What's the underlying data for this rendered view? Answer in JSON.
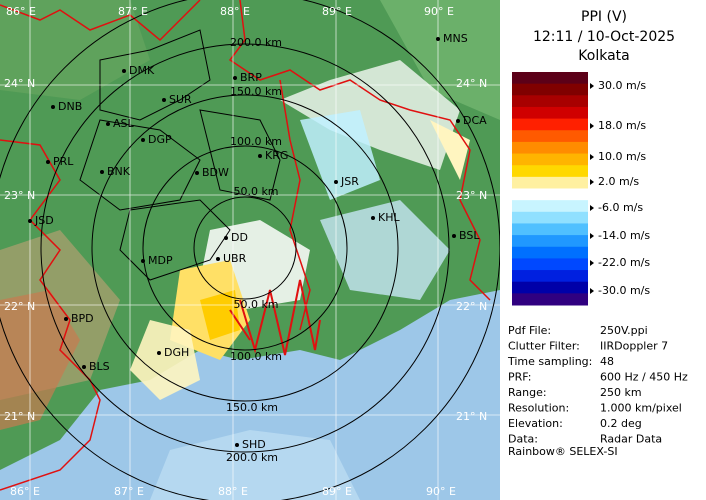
{
  "header": {
    "title": "PPI (V)",
    "time": "12:11 / 10-Oct-2025",
    "station": "Kolkata"
  },
  "colorbar": {
    "labels": [
      "30.0 m/s",
      "18.0 m/s",
      "10.0 m/s",
      "2.0 m/s",
      "-6.0 m/s",
      "-14.0 m/s",
      "-22.0 m/s",
      "-30.0 m/s"
    ]
  },
  "info": {
    "rows": [
      [
        "Pdf File:",
        "250V.ppi"
      ],
      [
        "Clutter Filter:",
        "IIRDoppler 7"
      ],
      [
        "Time sampling:",
        "48"
      ],
      [
        "PRF:",
        "600 Hz / 450 Hz"
      ],
      [
        "Range:",
        "250 km"
      ],
      [
        "Resolution:",
        "1.000 km/pixel"
      ],
      [
        "Elevation:",
        "0.2 deg"
      ],
      [
        "Data:",
        "Radar Data"
      ]
    ]
  },
  "footer": "Rainbow® SELEX-SI",
  "map": {
    "longitudes": [
      "86° E",
      "87° E",
      "88° E",
      "89° E",
      "90° E"
    ],
    "latitudes": [
      "24° N",
      "23° N",
      "22° N",
      "21° N"
    ],
    "rings": [
      "50.0 km",
      "100.0 km",
      "150.0 km",
      "200.0 km"
    ],
    "cities": [
      "MNS",
      "DMK",
      "BRP",
      "DNB",
      "SUR",
      "ASL",
      "DGP",
      "PRL",
      "BNK",
      "KRG",
      "BDW",
      "JSR",
      "KHL",
      "JSD",
      "DD",
      "UBR",
      "MDP",
      "BSL",
      "DCA",
      "BPD",
      "DGH",
      "BLS",
      "SHD"
    ]
  }
}
